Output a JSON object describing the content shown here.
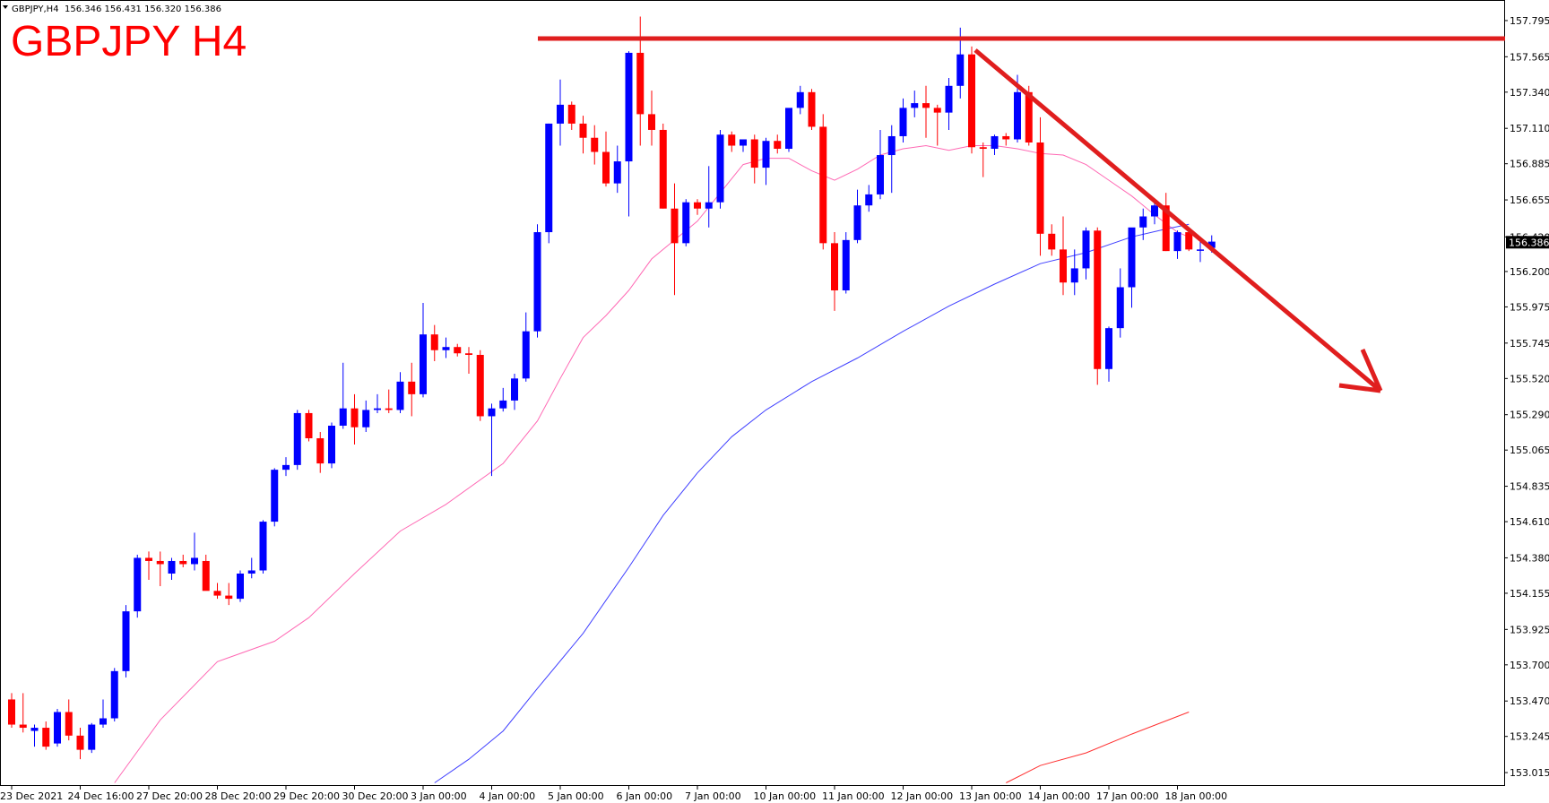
{
  "header": {
    "symbol_label": "GBPJPY,H4",
    "ohlc_text": "156.346 156.431 156.320 156.386"
  },
  "overlay_title": "GBPJPY H4",
  "colors": {
    "bull": "#0000ff",
    "bear": "#ff0000",
    "ma_fast": "#ff69b4",
    "ma_slow": "#4040ff",
    "ma_long": "#ff3030",
    "annotation": "#e01e1e",
    "frame": "#000000"
  },
  "chart_data": {
    "type": "candlestick",
    "price_range": [
      152.93,
      157.92
    ],
    "y_ticks": [
      "157.795",
      "157.565",
      "157.340",
      "157.110",
      "156.885",
      "156.655",
      "156.420",
      "156.200",
      "155.975",
      "155.745",
      "155.520",
      "155.290",
      "155.065",
      "154.835",
      "154.610",
      "154.380",
      "154.155",
      "153.925",
      "153.700",
      "153.470",
      "153.245",
      "153.015"
    ],
    "current_price": "156.386",
    "x_labels": [
      "23 Dec 2021",
      "24 Dec 16:00",
      "27 Dec 20:00",
      "28 Dec 20:00",
      "29 Dec 20:00",
      "30 Dec 20:00",
      "3 Jan 00:00",
      "4 Jan 00:00",
      "5 Jan 00:00",
      "6 Jan 00:00",
      "7 Jan 00:00",
      "10 Jan 00:00",
      "11 Jan 00:00",
      "12 Jan 00:00",
      "13 Jan 00:00",
      "14 Jan 00:00",
      "17 Jan 00:00",
      "18 Jan 00:00"
    ],
    "x_label_bars": [
      0,
      6,
      12,
      18,
      24,
      30,
      36,
      42,
      48,
      54,
      60,
      66,
      72,
      78,
      84,
      90,
      96,
      102
    ],
    "candles": [
      [
        153.48,
        153.52,
        153.3,
        153.32
      ],
      [
        153.32,
        153.52,
        153.27,
        153.3
      ],
      [
        153.28,
        153.32,
        153.18,
        153.3
      ],
      [
        153.3,
        153.34,
        153.16,
        153.18
      ],
      [
        153.2,
        153.42,
        153.18,
        153.4
      ],
      [
        153.4,
        153.48,
        153.22,
        153.25
      ],
      [
        153.25,
        153.3,
        153.1,
        153.16
      ],
      [
        153.16,
        153.33,
        153.14,
        153.32
      ],
      [
        153.32,
        153.48,
        153.3,
        153.36
      ],
      [
        153.36,
        153.68,
        153.34,
        153.66
      ],
      [
        153.66,
        154.08,
        153.62,
        154.04
      ],
      [
        154.04,
        154.4,
        154.0,
        154.38
      ],
      [
        154.38,
        154.42,
        154.24,
        154.36
      ],
      [
        154.36,
        154.42,
        154.2,
        154.34
      ],
      [
        154.28,
        154.38,
        154.24,
        154.36
      ],
      [
        154.36,
        154.4,
        154.32,
        154.34
      ],
      [
        154.34,
        154.54,
        154.3,
        154.38
      ],
      [
        154.36,
        154.4,
        154.18,
        154.17
      ],
      [
        154.17,
        154.22,
        154.12,
        154.14
      ],
      [
        154.14,
        154.22,
        154.08,
        154.12
      ],
      [
        154.12,
        154.3,
        154.1,
        154.28
      ],
      [
        154.28,
        154.38,
        154.25,
        154.3
      ],
      [
        154.3,
        154.62,
        154.28,
        154.61
      ],
      [
        154.61,
        154.95,
        154.58,
        154.94
      ],
      [
        154.94,
        155.02,
        154.9,
        154.97
      ],
      [
        154.97,
        155.32,
        154.94,
        155.3
      ],
      [
        155.3,
        155.32,
        155.12,
        155.14
      ],
      [
        155.14,
        155.18,
        154.92,
        154.98
      ],
      [
        154.98,
        155.24,
        154.95,
        155.22
      ],
      [
        155.22,
        155.62,
        155.2,
        155.33
      ],
      [
        155.33,
        155.42,
        155.1,
        155.21
      ],
      [
        155.21,
        155.38,
        155.18,
        155.32
      ],
      [
        155.32,
        155.42,
        155.3,
        155.33
      ],
      [
        155.33,
        155.45,
        155.3,
        155.32
      ],
      [
        155.32,
        155.56,
        155.3,
        155.5
      ],
      [
        155.5,
        155.62,
        155.28,
        155.42
      ],
      [
        155.42,
        156.0,
        155.4,
        155.8
      ],
      [
        155.8,
        155.86,
        155.63,
        155.7
      ],
      [
        155.7,
        155.78,
        155.65,
        155.72
      ],
      [
        155.72,
        155.74,
        155.66,
        155.68
      ],
      [
        155.68,
        155.72,
        155.55,
        155.67
      ],
      [
        155.67,
        155.7,
        155.25,
        155.28
      ],
      [
        155.28,
        155.36,
        154.9,
        155.33
      ],
      [
        155.33,
        155.46,
        155.31,
        155.38
      ],
      [
        155.38,
        155.55,
        155.32,
        155.52
      ],
      [
        155.52,
        155.94,
        155.5,
        155.82
      ],
      [
        155.82,
        156.5,
        155.78,
        156.45
      ],
      [
        156.45,
        157.14,
        156.38,
        157.14
      ],
      [
        157.14,
        157.42,
        157.0,
        157.26
      ],
      [
        157.26,
        157.28,
        157.1,
        157.14
      ],
      [
        157.14,
        157.19,
        156.95,
        157.05
      ],
      [
        157.05,
        157.13,
        156.88,
        156.96
      ],
      [
        156.96,
        157.09,
        156.74,
        156.76
      ],
      [
        156.76,
        157.0,
        156.7,
        156.9
      ],
      [
        156.9,
        157.6,
        156.55,
        157.59
      ],
      [
        157.59,
        157.82,
        157.0,
        157.2
      ],
      [
        157.2,
        157.35,
        157.0,
        157.1
      ],
      [
        157.1,
        157.14,
        156.6,
        156.6
      ],
      [
        156.6,
        156.76,
        156.05,
        156.38
      ],
      [
        156.38,
        156.66,
        156.36,
        156.64
      ],
      [
        156.64,
        156.66,
        156.56,
        156.6
      ],
      [
        156.6,
        156.87,
        156.48,
        156.64
      ],
      [
        156.64,
        157.1,
        156.6,
        157.07
      ],
      [
        157.07,
        157.09,
        156.96,
        157.0
      ],
      [
        157.0,
        157.04,
        156.96,
        157.04
      ],
      [
        157.04,
        157.07,
        156.76,
        156.86
      ],
      [
        156.86,
        157.05,
        156.75,
        157.03
      ],
      [
        157.03,
        157.07,
        156.95,
        156.98
      ],
      [
        156.98,
        157.22,
        156.96,
        157.24
      ],
      [
        157.24,
        157.38,
        157.2,
        157.34
      ],
      [
        157.34,
        157.36,
        157.1,
        157.12
      ],
      [
        157.12,
        157.2,
        156.34,
        156.38
      ],
      [
        156.38,
        156.45,
        155.95,
        156.08
      ],
      [
        156.08,
        156.45,
        156.06,
        156.4
      ],
      [
        156.4,
        156.72,
        156.38,
        156.62
      ],
      [
        156.62,
        156.75,
        156.58,
        156.69
      ],
      [
        156.69,
        157.1,
        156.66,
        156.94
      ],
      [
        156.94,
        157.13,
        156.7,
        157.06
      ],
      [
        157.06,
        157.3,
        157.02,
        157.24
      ],
      [
        157.24,
        157.35,
        157.18,
        157.27
      ],
      [
        157.27,
        157.38,
        157.05,
        157.24
      ],
      [
        157.24,
        157.26,
        157.0,
        157.21
      ],
      [
        157.21,
        157.43,
        157.1,
        157.38
      ],
      [
        157.38,
        157.75,
        157.3,
        157.58
      ],
      [
        157.58,
        157.63,
        156.95,
        156.99
      ],
      [
        156.99,
        157.02,
        156.8,
        156.98
      ],
      [
        156.98,
        157.07,
        156.94,
        157.06
      ],
      [
        157.06,
        157.08,
        157.0,
        157.04
      ],
      [
        157.04,
        157.45,
        157.02,
        157.34
      ],
      [
        157.34,
        157.38,
        157.0,
        157.02
      ],
      [
        157.02,
        157.18,
        156.3,
        156.44
      ],
      [
        156.44,
        156.5,
        156.3,
        156.34
      ],
      [
        156.34,
        156.55,
        156.05,
        156.13
      ],
      [
        156.13,
        156.34,
        156.05,
        156.22
      ],
      [
        156.22,
        156.48,
        156.15,
        156.46
      ],
      [
        156.46,
        156.48,
        155.48,
        155.58
      ],
      [
        155.58,
        155.85,
        155.5,
        155.84
      ],
      [
        155.84,
        156.22,
        155.78,
        156.1
      ],
      [
        156.1,
        156.46,
        155.97,
        156.48
      ],
      [
        156.48,
        156.6,
        156.4,
        156.55
      ],
      [
        156.55,
        156.66,
        156.5,
        156.62
      ],
      [
        156.62,
        156.7,
        156.33,
        156.33
      ],
      [
        156.33,
        156.46,
        156.28,
        156.45
      ],
      [
        156.45,
        156.47,
        156.33,
        156.34
      ],
      [
        156.34,
        156.4,
        156.26,
        156.34
      ],
      [
        156.35,
        156.43,
        156.32,
        156.39
      ]
    ],
    "ma_fast": [
      [
        9,
        152.95
      ],
      [
        13,
        153.35
      ],
      [
        18,
        153.72
      ],
      [
        23,
        153.85
      ],
      [
        26,
        154.0
      ],
      [
        30,
        154.28
      ],
      [
        34,
        154.55
      ],
      [
        38,
        154.72
      ],
      [
        43,
        154.98
      ],
      [
        46,
        155.25
      ],
      [
        48,
        155.52
      ],
      [
        50,
        155.78
      ],
      [
        52,
        155.92
      ],
      [
        54,
        156.08
      ],
      [
        56,
        156.28
      ],
      [
        58,
        156.4
      ],
      [
        60,
        156.52
      ],
      [
        62,
        156.7
      ],
      [
        64,
        156.88
      ],
      [
        66,
        156.92
      ],
      [
        68,
        156.92
      ],
      [
        70,
        156.84
      ],
      [
        72,
        156.78
      ],
      [
        74,
        156.85
      ],
      [
        76,
        156.94
      ],
      [
        78,
        156.98
      ],
      [
        80,
        157.0
      ],
      [
        82,
        156.97
      ],
      [
        84,
        157.0
      ],
      [
        86,
        157.0
      ],
      [
        88,
        156.98
      ],
      [
        90,
        156.95
      ],
      [
        92,
        156.94
      ],
      [
        94,
        156.88
      ],
      [
        96,
        156.78
      ],
      [
        98,
        156.68
      ],
      [
        100,
        156.56
      ],
      [
        102,
        156.45
      ],
      [
        103,
        156.42
      ]
    ],
    "ma_slow": [
      [
        37,
        152.95
      ],
      [
        40,
        153.1
      ],
      [
        43,
        153.28
      ],
      [
        46,
        153.55
      ],
      [
        50,
        153.9
      ],
      [
        54,
        154.32
      ],
      [
        57,
        154.65
      ],
      [
        60,
        154.92
      ],
      [
        63,
        155.15
      ],
      [
        66,
        155.32
      ],
      [
        70,
        155.5
      ],
      [
        74,
        155.65
      ],
      [
        78,
        155.82
      ],
      [
        82,
        155.98
      ],
      [
        86,
        156.12
      ],
      [
        90,
        156.25
      ],
      [
        94,
        156.32
      ],
      [
        98,
        156.42
      ],
      [
        101,
        156.47
      ],
      [
        103,
        156.5
      ]
    ],
    "ma_long": [
      [
        87,
        152.95
      ],
      [
        90,
        153.06
      ],
      [
        94,
        153.14
      ],
      [
        98,
        153.26
      ],
      [
        103,
        153.4
      ]
    ]
  }
}
